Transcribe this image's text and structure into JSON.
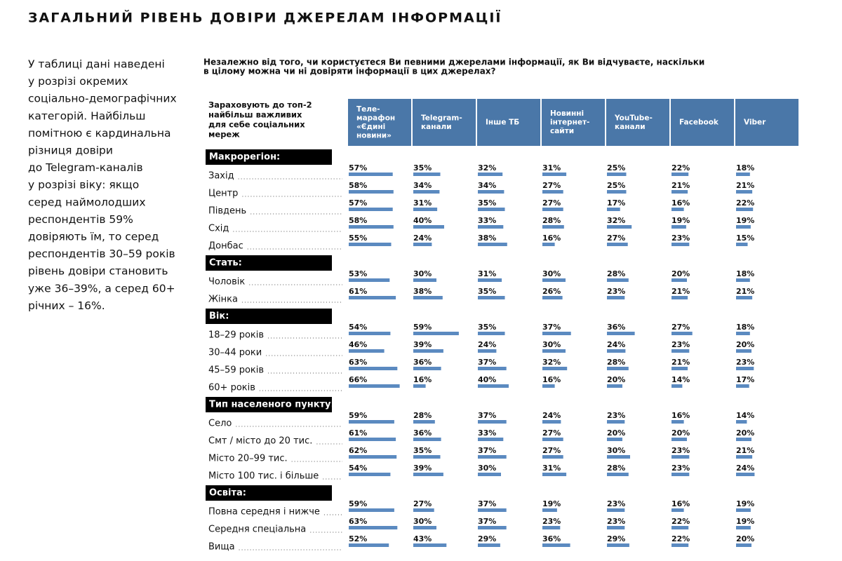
{
  "title": "ЗАГАЛЬНИЙ РІВЕНЬ ДОВІРИ ДЖЕРЕЛАМ ІНФОРМАЦІЇ",
  "intro": [
    "У таблиці дані наведені",
    "у розрізі окремих",
    "соціально-демографічних",
    "категорій. Найбільш",
    "помітною є кардинальна",
    "різниця довіри",
    "до Telegram-каналів",
    "у розрізі віку: якщо",
    "серед наймолодших",
    "респондентів 59%",
    "довіряють їм, то серед",
    "респондентів 30–59 років",
    "рівень довіри становить",
    "уже 36–39%, а серед 60+",
    "річних – 16%."
  ],
  "question": [
    "Незалежно від того, чи користуєтеся Ви певними джерелами інформації, як Ви відчуваєте, наскільки",
    "в цілому можна чи ні довіряти інформації в цих джерелах?"
  ],
  "table": {
    "row_header": [
      "Зараховують до топ-2",
      "найбільш важливих",
      "для себе соціальних",
      "мереж"
    ],
    "columns": [
      [
        "Теле-",
        "марафон",
        "«Єдині",
        "новини»"
      ],
      [
        "Telegram-",
        "канали"
      ],
      [
        "Інше ТБ"
      ],
      [
        "Новинні",
        "інтернет-",
        "сайти"
      ],
      [
        "YouTube-",
        "канали"
      ],
      [
        "Facebook"
      ],
      [
        "Viber"
      ]
    ],
    "groups": [
      {
        "label": "Макрорегіон:",
        "rows": [
          {
            "label": "Захід",
            "values": [
              57,
              35,
              32,
              31,
              25,
              22,
              18
            ],
            "value_labels": [
              "57%",
              "35%",
              "32%",
              "31%",
              "25%",
              "22%",
              "18%"
            ]
          },
          {
            "label": "Центр",
            "values": [
              58,
              34,
              34,
              27,
              25,
              21,
              21
            ],
            "value_labels": [
              "58%",
              "34%",
              "34%",
              "27%",
              "25%",
              "21%",
              "21%"
            ]
          },
          {
            "label": "Південь",
            "values": [
              57,
              31,
              35,
              27,
              17,
              16,
              22
            ],
            "value_labels": [
              "57%",
              "31%",
              "35%",
              "27%",
              "17%",
              "16%",
              "22%"
            ]
          },
          {
            "label": "Схід",
            "values": [
              58,
              40,
              33,
              28,
              32,
              19,
              19
            ],
            "value_labels": [
              "58%",
              "40%",
              "33%",
              "28%",
              "32%",
              "19%",
              "19%"
            ]
          },
          {
            "label": "Донбас",
            "values": [
              55,
              24,
              38,
              16,
              27,
              23,
              15
            ],
            "value_labels": [
              "55%",
              "24%",
              "38%",
              "16%",
              "27%",
              "23%",
              "15%"
            ]
          }
        ]
      },
      {
        "label": "Стать:",
        "rows": [
          {
            "label": "Чоловік",
            "values": [
              53,
              30,
              31,
              30,
              28,
              20,
              18
            ],
            "value_labels": [
              "53%",
              "30%",
              "31%",
              "30%",
              "28%",
              "20%",
              "18%"
            ]
          },
          {
            "label": "Жінка",
            "values": [
              61,
              38,
              35,
              26,
              23,
              21,
              21
            ],
            "value_labels": [
              "61%",
              "38%",
              "35%",
              "26%",
              "23%",
              "21%",
              "21%"
            ]
          }
        ]
      },
      {
        "label": "Вік:",
        "rows": [
          {
            "label": "18–29 років",
            "values": [
              54,
              59,
              35,
              37,
              36,
              27,
              18
            ],
            "value_labels": [
              "54%",
              "59%",
              "35%",
              "37%",
              "36%",
              "27%",
              "18%"
            ]
          },
          {
            "label": "30–44 роки",
            "values": [
              46,
              39,
              24,
              30,
              24,
              23,
              20
            ],
            "value_labels": [
              "46%",
              "39%",
              "24%",
              "30%",
              "24%",
              "23%",
              "20%"
            ]
          },
          {
            "label": "45–59 років",
            "values": [
              63,
              36,
              37,
              32,
              28,
              21,
              23
            ],
            "value_labels": [
              "63%",
              "36%",
              "37%",
              "32%",
              "28%",
              "21%",
              "23%"
            ]
          },
          {
            "label": "60+ років",
            "values": [
              66,
              16,
              40,
              16,
              20,
              14,
              17
            ],
            "value_labels": [
              "66%",
              "16%",
              "40%",
              "16%",
              "20%",
              "14%",
              "17%"
            ]
          }
        ]
      },
      {
        "label": "Тип населеного пункту:",
        "rows": [
          {
            "label": "Село",
            "values": [
              59,
              28,
              37,
              24,
              23,
              16,
              14
            ],
            "value_labels": [
              "59%",
              "28%",
              "37%",
              "24%",
              "23%",
              "16%",
              "14%"
            ]
          },
          {
            "label": "Смт / місто до 20 тис.",
            "values": [
              61,
              36,
              33,
              27,
              20,
              20,
              20
            ],
            "value_labels": [
              "61%",
              "36%",
              "33%",
              "27%",
              "20%",
              "20%",
              "20%"
            ]
          },
          {
            "label": "Місто 20–99 тис.",
            "values": [
              62,
              35,
              37,
              27,
              30,
              23,
              21
            ],
            "value_labels": [
              "62%",
              "35%",
              "37%",
              "27%",
              "30%",
              "23%",
              "21%"
            ]
          },
          {
            "label": "Місто 100 тис. і більше",
            "values": [
              54,
              39,
              30,
              31,
              28,
              23,
              24
            ],
            "value_labels": [
              "54%",
              "39%",
              "30%",
              "31%",
              "28%",
              "23%",
              "24%"
            ]
          }
        ]
      },
      {
        "label": "Освіта:",
        "rows": [
          {
            "label": "Повна середня і нижче",
            "values": [
              59,
              27,
              37,
              19,
              23,
              16,
              19
            ],
            "value_labels": [
              "59%",
              "27%",
              "37%",
              "19%",
              "23%",
              "16%",
              "19%"
            ]
          },
          {
            "label": "Середня спеціальна",
            "values": [
              63,
              30,
              37,
              23,
              23,
              22,
              19
            ],
            "value_labels": [
              "63%",
              "30%",
              "37%",
              "23%",
              "23%",
              "22%",
              "19%"
            ]
          },
          {
            "label": "Вища",
            "values": [
              52,
              43,
              29,
              36,
              29,
              22,
              20
            ],
            "value_labels": [
              "52%",
              "43%",
              "29%",
              "36%",
              "29%",
              "22%",
              "20%"
            ]
          }
        ]
      }
    ]
  }
}
